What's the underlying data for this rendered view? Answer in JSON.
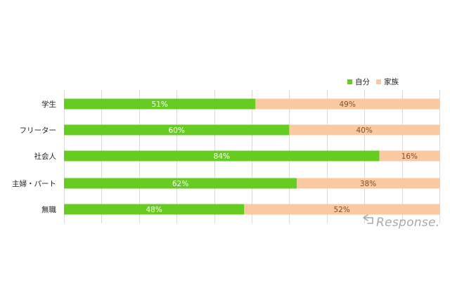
{
  "chart_data": {
    "type": "bar",
    "orientation": "horizontal",
    "stacked": true,
    "percent_stacked": true,
    "title": "",
    "xlabel": "",
    "ylabel": "",
    "xlim": [
      0,
      100
    ],
    "grid": "vertical",
    "legend_position": "top-right",
    "categories": [
      "学生",
      "フリーター",
      "社会人",
      "主婦・パート",
      "無職"
    ],
    "series": [
      {
        "name": "自分",
        "color": "#66cc22",
        "label_color": "#ffffff",
        "values": [
          51,
          60,
          84,
          62,
          48
        ],
        "labels": [
          "51%",
          "60%",
          "84%",
          "62%",
          "48%"
        ]
      },
      {
        "name": "家族",
        "color": "#f9c9a2",
        "label_color": "#8a4b2a",
        "values": [
          49,
          40,
          16,
          38,
          52
        ],
        "labels": [
          "49%",
          "40%",
          "16%",
          "38%",
          "52%"
        ]
      }
    ]
  },
  "watermark": {
    "text": "Response.",
    "icon": "response-logo-icon"
  }
}
